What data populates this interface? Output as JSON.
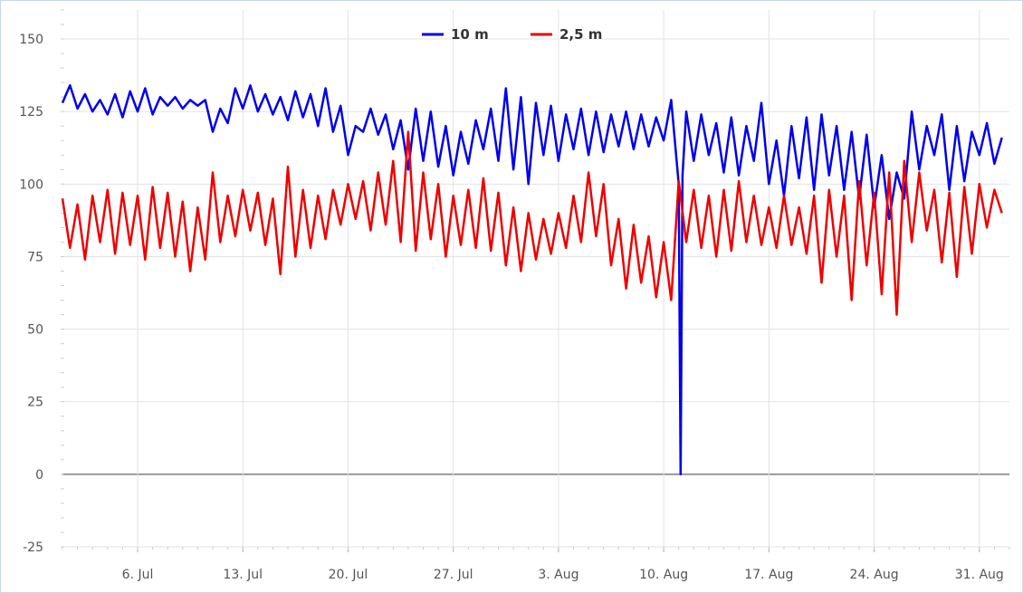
{
  "chart_data": {
    "type": "line",
    "title": "",
    "xlabel": "",
    "ylabel": "",
    "ylim": [
      -25,
      160
    ],
    "yticks": [
      -25,
      0,
      25,
      50,
      75,
      100,
      125,
      150
    ],
    "xlim": [
      "2024-07-01",
      "2024-09-02"
    ],
    "xticks": [
      {
        "date": "2024-07-06",
        "label": "6. Jul"
      },
      {
        "date": "2024-07-13",
        "label": "13. Jul"
      },
      {
        "date": "2024-07-20",
        "label": "20. Jul"
      },
      {
        "date": "2024-07-27",
        "label": "27. Jul"
      },
      {
        "date": "2024-08-03",
        "label": "3. Aug"
      },
      {
        "date": "2024-08-10",
        "label": "10. Aug"
      },
      {
        "date": "2024-08-17",
        "label": "17. Aug"
      },
      {
        "date": "2024-08-24",
        "label": "24. Aug"
      },
      {
        "date": "2024-08-31",
        "label": "31. Aug"
      }
    ],
    "grid": true,
    "legend_position": "top-center",
    "series": [
      {
        "name": "10 m",
        "color": "#0000ee",
        "points": [
          [
            "2024-07-01T00:00",
            128
          ],
          [
            "2024-07-01T12:00",
            134
          ],
          [
            "2024-07-02T00:00",
            126
          ],
          [
            "2024-07-02T12:00",
            131
          ],
          [
            "2024-07-03T00:00",
            125
          ],
          [
            "2024-07-03T12:00",
            129
          ],
          [
            "2024-07-04T00:00",
            124
          ],
          [
            "2024-07-04T12:00",
            131
          ],
          [
            "2024-07-05T00:00",
            123
          ],
          [
            "2024-07-05T12:00",
            132
          ],
          [
            "2024-07-06T00:00",
            125
          ],
          [
            "2024-07-06T12:00",
            133
          ],
          [
            "2024-07-07T00:00",
            124
          ],
          [
            "2024-07-07T12:00",
            130
          ],
          [
            "2024-07-08T00:00",
            127
          ],
          [
            "2024-07-08T12:00",
            130
          ],
          [
            "2024-07-09T00:00",
            126
          ],
          [
            "2024-07-09T12:00",
            129
          ],
          [
            "2024-07-10T00:00",
            127
          ],
          [
            "2024-07-10T12:00",
            129
          ],
          [
            "2024-07-11T00:00",
            118
          ],
          [
            "2024-07-11T12:00",
            126
          ],
          [
            "2024-07-12T00:00",
            121
          ],
          [
            "2024-07-12T12:00",
            133
          ],
          [
            "2024-07-13T00:00",
            126
          ],
          [
            "2024-07-13T12:00",
            134
          ],
          [
            "2024-07-14T00:00",
            125
          ],
          [
            "2024-07-14T12:00",
            131
          ],
          [
            "2024-07-15T00:00",
            124
          ],
          [
            "2024-07-15T12:00",
            130
          ],
          [
            "2024-07-16T00:00",
            122
          ],
          [
            "2024-07-16T12:00",
            132
          ],
          [
            "2024-07-17T00:00",
            123
          ],
          [
            "2024-07-17T12:00",
            131
          ],
          [
            "2024-07-18T00:00",
            120
          ],
          [
            "2024-07-18T12:00",
            133
          ],
          [
            "2024-07-19T00:00",
            118
          ],
          [
            "2024-07-19T12:00",
            127
          ],
          [
            "2024-07-20T00:00",
            110
          ],
          [
            "2024-07-20T12:00",
            120
          ],
          [
            "2024-07-21T00:00",
            118
          ],
          [
            "2024-07-21T12:00",
            126
          ],
          [
            "2024-07-22T00:00",
            117
          ],
          [
            "2024-07-22T12:00",
            124
          ],
          [
            "2024-07-23T00:00",
            112
          ],
          [
            "2024-07-23T12:00",
            122
          ],
          [
            "2024-07-24T00:00",
            105
          ],
          [
            "2024-07-24T12:00",
            126
          ],
          [
            "2024-07-25T00:00",
            108
          ],
          [
            "2024-07-25T12:00",
            125
          ],
          [
            "2024-07-26T00:00",
            106
          ],
          [
            "2024-07-26T12:00",
            120
          ],
          [
            "2024-07-27T00:00",
            103
          ],
          [
            "2024-07-27T12:00",
            118
          ],
          [
            "2024-07-28T00:00",
            107
          ],
          [
            "2024-07-28T12:00",
            122
          ],
          [
            "2024-07-29T00:00",
            112
          ],
          [
            "2024-07-29T12:00",
            126
          ],
          [
            "2024-07-30T00:00",
            108
          ],
          [
            "2024-07-30T12:00",
            133
          ],
          [
            "2024-07-31T00:00",
            105
          ],
          [
            "2024-07-31T12:00",
            130
          ],
          [
            "2024-08-01T00:00",
            100
          ],
          [
            "2024-08-01T12:00",
            128
          ],
          [
            "2024-08-02T00:00",
            110
          ],
          [
            "2024-08-02T12:00",
            127
          ],
          [
            "2024-08-03T00:00",
            108
          ],
          [
            "2024-08-03T12:00",
            124
          ],
          [
            "2024-08-04T00:00",
            112
          ],
          [
            "2024-08-04T12:00",
            126
          ],
          [
            "2024-08-05T00:00",
            110
          ],
          [
            "2024-08-05T12:00",
            125
          ],
          [
            "2024-08-06T00:00",
            111
          ],
          [
            "2024-08-06T12:00",
            124
          ],
          [
            "2024-08-07T00:00",
            113
          ],
          [
            "2024-08-07T12:00",
            125
          ],
          [
            "2024-08-08T00:00",
            112
          ],
          [
            "2024-08-08T12:00",
            124
          ],
          [
            "2024-08-09T00:00",
            113
          ],
          [
            "2024-08-09T12:00",
            123
          ],
          [
            "2024-08-10T00:00",
            115
          ],
          [
            "2024-08-10T12:00",
            129
          ],
          [
            "2024-08-11T00:00",
            100
          ],
          [
            "2024-08-11T03:00",
            0
          ],
          [
            "2024-08-11T06:00",
            103
          ],
          [
            "2024-08-11T12:00",
            125
          ],
          [
            "2024-08-12T00:00",
            108
          ],
          [
            "2024-08-12T12:00",
            124
          ],
          [
            "2024-08-13T00:00",
            110
          ],
          [
            "2024-08-13T12:00",
            121
          ],
          [
            "2024-08-14T00:00",
            104
          ],
          [
            "2024-08-14T12:00",
            123
          ],
          [
            "2024-08-15T00:00",
            103
          ],
          [
            "2024-08-15T12:00",
            120
          ],
          [
            "2024-08-16T00:00",
            108
          ],
          [
            "2024-08-16T12:00",
            128
          ],
          [
            "2024-08-17T00:00",
            100
          ],
          [
            "2024-08-17T12:00",
            115
          ],
          [
            "2024-08-18T00:00",
            96
          ],
          [
            "2024-08-18T12:00",
            120
          ],
          [
            "2024-08-19T00:00",
            102
          ],
          [
            "2024-08-19T12:00",
            123
          ],
          [
            "2024-08-20T00:00",
            98
          ],
          [
            "2024-08-20T12:00",
            124
          ],
          [
            "2024-08-21T00:00",
            103
          ],
          [
            "2024-08-21T12:00",
            120
          ],
          [
            "2024-08-22T00:00",
            98
          ],
          [
            "2024-08-22T12:00",
            118
          ],
          [
            "2024-08-23T00:00",
            95
          ],
          [
            "2024-08-23T12:00",
            117
          ],
          [
            "2024-08-24T00:00",
            92
          ],
          [
            "2024-08-24T12:00",
            110
          ],
          [
            "2024-08-25T00:00",
            88
          ],
          [
            "2024-08-25T12:00",
            104
          ],
          [
            "2024-08-26T00:00",
            95
          ],
          [
            "2024-08-26T12:00",
            125
          ],
          [
            "2024-08-27T00:00",
            105
          ],
          [
            "2024-08-27T12:00",
            120
          ],
          [
            "2024-08-28T00:00",
            110
          ],
          [
            "2024-08-28T12:00",
            124
          ],
          [
            "2024-08-29T00:00",
            98
          ],
          [
            "2024-08-29T12:00",
            120
          ],
          [
            "2024-08-30T00:00",
            101
          ],
          [
            "2024-08-30T12:00",
            118
          ],
          [
            "2024-08-31T00:00",
            110
          ],
          [
            "2024-08-31T12:00",
            121
          ],
          [
            "2024-09-01T00:00",
            107
          ],
          [
            "2024-09-01T12:00",
            116
          ]
        ]
      },
      {
        "name": "2,5 m",
        "color": "#ee0000",
        "points": [
          [
            "2024-07-01T00:00",
            95
          ],
          [
            "2024-07-01T12:00",
            78
          ],
          [
            "2024-07-02T00:00",
            93
          ],
          [
            "2024-07-02T12:00",
            74
          ],
          [
            "2024-07-03T00:00",
            96
          ],
          [
            "2024-07-03T12:00",
            80
          ],
          [
            "2024-07-04T00:00",
            98
          ],
          [
            "2024-07-04T12:00",
            76
          ],
          [
            "2024-07-05T00:00",
            97
          ],
          [
            "2024-07-05T12:00",
            79
          ],
          [
            "2024-07-06T00:00",
            96
          ],
          [
            "2024-07-06T12:00",
            74
          ],
          [
            "2024-07-07T00:00",
            99
          ],
          [
            "2024-07-07T12:00",
            78
          ],
          [
            "2024-07-08T00:00",
            97
          ],
          [
            "2024-07-08T12:00",
            75
          ],
          [
            "2024-07-09T00:00",
            94
          ],
          [
            "2024-07-09T12:00",
            70
          ],
          [
            "2024-07-10T00:00",
            92
          ],
          [
            "2024-07-10T12:00",
            74
          ],
          [
            "2024-07-11T00:00",
            104
          ],
          [
            "2024-07-11T12:00",
            80
          ],
          [
            "2024-07-12T00:00",
            96
          ],
          [
            "2024-07-12T12:00",
            82
          ],
          [
            "2024-07-13T00:00",
            98
          ],
          [
            "2024-07-13T12:00",
            84
          ],
          [
            "2024-07-14T00:00",
            97
          ],
          [
            "2024-07-14T12:00",
            79
          ],
          [
            "2024-07-15T00:00",
            95
          ],
          [
            "2024-07-15T12:00",
            69
          ],
          [
            "2024-07-16T00:00",
            106
          ],
          [
            "2024-07-16T12:00",
            75
          ],
          [
            "2024-07-17T00:00",
            98
          ],
          [
            "2024-07-17T12:00",
            78
          ],
          [
            "2024-07-18T00:00",
            96
          ],
          [
            "2024-07-18T12:00",
            81
          ],
          [
            "2024-07-19T00:00",
            98
          ],
          [
            "2024-07-19T12:00",
            86
          ],
          [
            "2024-07-20T00:00",
            100
          ],
          [
            "2024-07-20T12:00",
            88
          ],
          [
            "2024-07-21T00:00",
            101
          ],
          [
            "2024-07-21T12:00",
            84
          ],
          [
            "2024-07-22T00:00",
            104
          ],
          [
            "2024-07-22T12:00",
            86
          ],
          [
            "2024-07-23T00:00",
            108
          ],
          [
            "2024-07-23T12:00",
            80
          ],
          [
            "2024-07-24T00:00",
            118
          ],
          [
            "2024-07-24T12:00",
            77
          ],
          [
            "2024-07-25T00:00",
            104
          ],
          [
            "2024-07-25T12:00",
            81
          ],
          [
            "2024-07-26T00:00",
            100
          ],
          [
            "2024-07-26T12:00",
            75
          ],
          [
            "2024-07-27T00:00",
            96
          ],
          [
            "2024-07-27T12:00",
            79
          ],
          [
            "2024-07-28T00:00",
            98
          ],
          [
            "2024-07-28T12:00",
            78
          ],
          [
            "2024-07-29T00:00",
            102
          ],
          [
            "2024-07-29T12:00",
            77
          ],
          [
            "2024-07-30T00:00",
            97
          ],
          [
            "2024-07-30T12:00",
            72
          ],
          [
            "2024-07-31T00:00",
            92
          ],
          [
            "2024-07-31T12:00",
            70
          ],
          [
            "2024-08-01T00:00",
            90
          ],
          [
            "2024-08-01T12:00",
            74
          ],
          [
            "2024-08-02T00:00",
            88
          ],
          [
            "2024-08-02T12:00",
            76
          ],
          [
            "2024-08-03T00:00",
            90
          ],
          [
            "2024-08-03T12:00",
            78
          ],
          [
            "2024-08-04T00:00",
            96
          ],
          [
            "2024-08-04T12:00",
            80
          ],
          [
            "2024-08-05T00:00",
            104
          ],
          [
            "2024-08-05T12:00",
            82
          ],
          [
            "2024-08-06T00:00",
            100
          ],
          [
            "2024-08-06T12:00",
            72
          ],
          [
            "2024-08-07T00:00",
            88
          ],
          [
            "2024-08-07T12:00",
            64
          ],
          [
            "2024-08-08T00:00",
            86
          ],
          [
            "2024-08-08T12:00",
            66
          ],
          [
            "2024-08-09T00:00",
            82
          ],
          [
            "2024-08-09T12:00",
            61
          ],
          [
            "2024-08-10T00:00",
            80
          ],
          [
            "2024-08-10T12:00",
            60
          ],
          [
            "2024-08-11T00:00",
            101
          ],
          [
            "2024-08-11T12:00",
            80
          ],
          [
            "2024-08-12T00:00",
            98
          ],
          [
            "2024-08-12T12:00",
            78
          ],
          [
            "2024-08-13T00:00",
            96
          ],
          [
            "2024-08-13T12:00",
            75
          ],
          [
            "2024-08-14T00:00",
            98
          ],
          [
            "2024-08-14T12:00",
            77
          ],
          [
            "2024-08-15T00:00",
            101
          ],
          [
            "2024-08-15T12:00",
            80
          ],
          [
            "2024-08-16T00:00",
            96
          ],
          [
            "2024-08-16T12:00",
            79
          ],
          [
            "2024-08-17T00:00",
            92
          ],
          [
            "2024-08-17T12:00",
            78
          ],
          [
            "2024-08-18T00:00",
            96
          ],
          [
            "2024-08-18T12:00",
            79
          ],
          [
            "2024-08-19T00:00",
            92
          ],
          [
            "2024-08-19T12:00",
            76
          ],
          [
            "2024-08-20T00:00",
            96
          ],
          [
            "2024-08-20T12:00",
            66
          ],
          [
            "2024-08-21T00:00",
            98
          ],
          [
            "2024-08-21T12:00",
            75
          ],
          [
            "2024-08-22T00:00",
            96
          ],
          [
            "2024-08-22T12:00",
            60
          ],
          [
            "2024-08-23T00:00",
            101
          ],
          [
            "2024-08-23T12:00",
            72
          ],
          [
            "2024-08-24T00:00",
            97
          ],
          [
            "2024-08-24T12:00",
            62
          ],
          [
            "2024-08-25T00:00",
            104
          ],
          [
            "2024-08-25T12:00",
            55
          ],
          [
            "2024-08-26T00:00",
            108
          ],
          [
            "2024-08-26T12:00",
            80
          ],
          [
            "2024-08-27T00:00",
            104
          ],
          [
            "2024-08-27T12:00",
            84
          ],
          [
            "2024-08-28T00:00",
            98
          ],
          [
            "2024-08-28T12:00",
            73
          ],
          [
            "2024-08-29T00:00",
            97
          ],
          [
            "2024-08-29T12:00",
            68
          ],
          [
            "2024-08-30T00:00",
            99
          ],
          [
            "2024-08-30T12:00",
            76
          ],
          [
            "2024-08-31T00:00",
            100
          ],
          [
            "2024-08-31T12:00",
            85
          ],
          [
            "2024-09-01T00:00",
            98
          ],
          [
            "2024-09-01T12:00",
            90
          ]
        ]
      }
    ]
  }
}
